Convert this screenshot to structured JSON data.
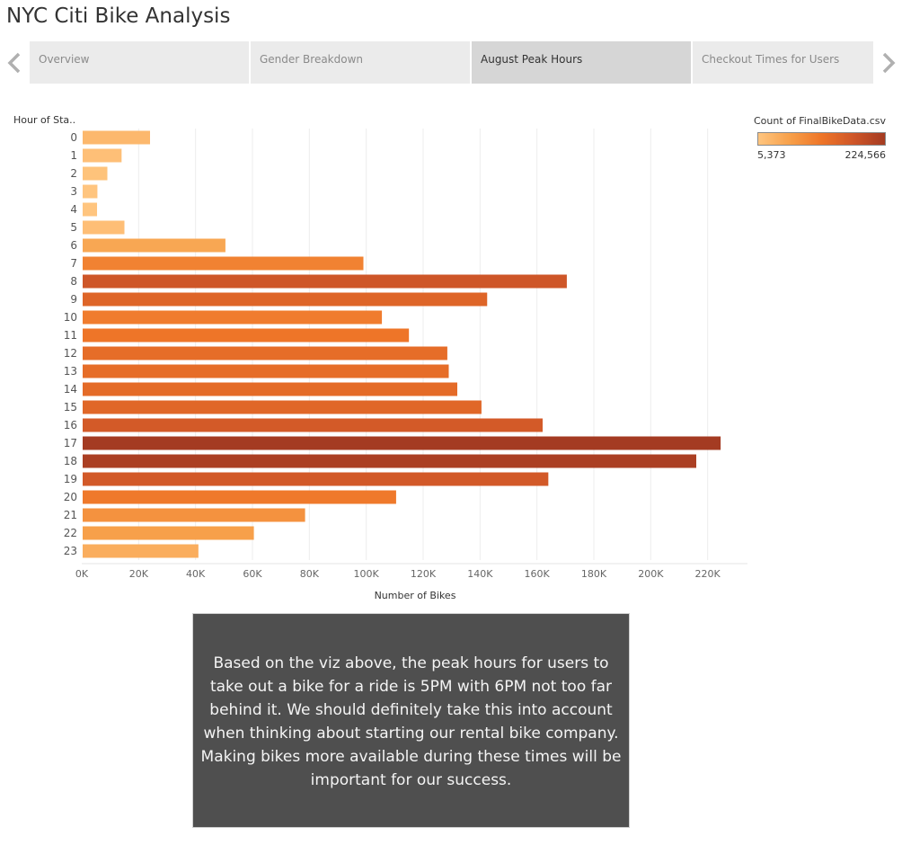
{
  "page": {
    "title": "NYC Citi Bike Analysis"
  },
  "tabs": [
    {
      "label": "Overview",
      "active": false
    },
    {
      "label": "Gender Breakdown",
      "active": false
    },
    {
      "label": "August Peak Hours",
      "active": true
    },
    {
      "label": "Checkout Times for Users",
      "active": false
    }
  ],
  "nav": {
    "prev_icon": "chevron-left-icon",
    "next_icon": "chevron-right-icon"
  },
  "chart_data": {
    "type": "bar",
    "orientation": "horizontal",
    "ylabel": "Hour of Sta..",
    "xlabel": "Number of Bikes",
    "categories": [
      "0",
      "1",
      "2",
      "3",
      "4",
      "5",
      "6",
      "7",
      "8",
      "9",
      "10",
      "11",
      "12",
      "13",
      "14",
      "15",
      "16",
      "17",
      "18",
      "19",
      "20",
      "21",
      "22",
      "23"
    ],
    "values": [
      24000,
      14000,
      9000,
      5500,
      5373,
      15000,
      50500,
      99000,
      170500,
      142500,
      105500,
      115000,
      128500,
      129000,
      132000,
      140500,
      162000,
      224566,
      216000,
      164000,
      110500,
      78500,
      60500,
      41000
    ],
    "xlim": [
      0,
      234000
    ],
    "x_ticks": [
      0,
      20000,
      40000,
      60000,
      80000,
      100000,
      120000,
      140000,
      160000,
      180000,
      200000,
      220000
    ],
    "x_tick_labels": [
      "0K",
      "20K",
      "40K",
      "60K",
      "80K",
      "100K",
      "120K",
      "140K",
      "160K",
      "180K",
      "200K",
      "220K"
    ],
    "grid": "vertical",
    "color_scale": [
      "#ffc57f",
      "#f7a04a",
      "#ee7528",
      "#cf5628",
      "#a43b22"
    ],
    "legend": {
      "title": "Count of FinalBikeData.csv",
      "min_label": "5,373",
      "max_label": "224,566",
      "min": 5373,
      "max": 224566,
      "placement": "top-right"
    }
  },
  "note": {
    "text": "Based on the viz above, the peak hours for users to take out a bike for a ride is 5PM with 6PM not too far behind it. We should definitely take this into account when thinking about starting our rental bike company. Making bikes more available during these times will be important for our success."
  }
}
